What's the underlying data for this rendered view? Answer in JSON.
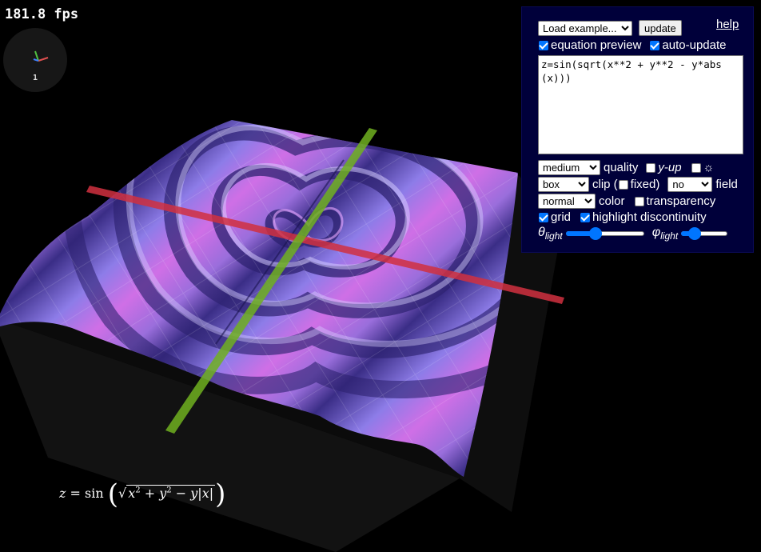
{
  "fps": {
    "label": "181.8 fps"
  },
  "axes_gizmo": {
    "label": "1",
    "x_color": "#e05050",
    "y_color": "#50c040",
    "z_color": "#4080ff"
  },
  "formula": {
    "lhs": "z",
    "eq": "=",
    "fn": "sin",
    "x": "x",
    "y": "y",
    "exp": "2",
    "plus": "+",
    "minus": "−",
    "bar": "|"
  },
  "panel": {
    "example_select": "Load example...",
    "update_button": "update",
    "help_link": "help",
    "equation_preview": {
      "label": "equation preview",
      "checked": true
    },
    "auto_update": {
      "label": "auto-update",
      "checked": true
    },
    "equation": "z=sin(sqrt(x**2 + y**2 - y*abs(x)))",
    "quality_select": "medium",
    "quality_label": "quality",
    "y_up": {
      "label": "y-up",
      "checked": false
    },
    "light_toggle": {
      "icon": "☼",
      "checked": false
    },
    "clip_select": "box",
    "clip_label": "clip (",
    "fixed": {
      "label": "fixed)",
      "checked": false
    },
    "field_select": "no",
    "field_label": "field",
    "color_select": "normal",
    "color_label": "color",
    "transparency": {
      "label": "transparency",
      "checked": false
    },
    "grid": {
      "label": "grid",
      "checked": true
    },
    "highlight_discontinuity": {
      "label": "highlight discontinuity",
      "checked": true
    },
    "theta_light": {
      "symbol": "θ",
      "sub": "light",
      "value": 0.36
    },
    "phi_light": {
      "symbol": "φ",
      "sub": "light",
      "value": 0.2
    }
  },
  "colors": {
    "surface_light": "#d070e8",
    "surface_mid": "#9b7cf0",
    "surface_dark": "#3c2f8a",
    "x_axis": "#d03040",
    "y_axis": "#70b020",
    "panel_bg": "#00003a",
    "accent": "#0075ff"
  }
}
